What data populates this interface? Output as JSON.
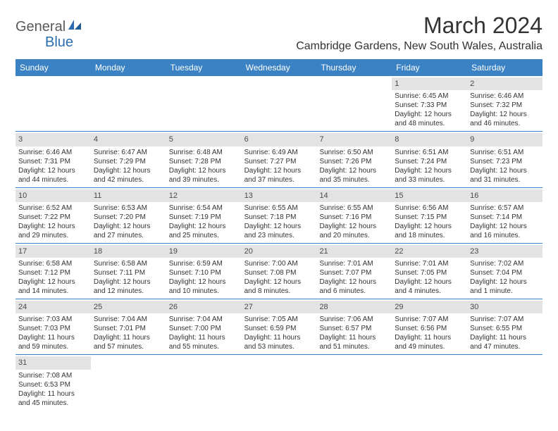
{
  "logo": {
    "part1": "General",
    "part2": "Blue"
  },
  "title": "March 2024",
  "location": "Cambridge Gardens, New South Wales, Australia",
  "colors": {
    "header_bg": "#3b82c4",
    "header_text": "#ffffff",
    "daynum_bg": "#e3e3e3",
    "row_border": "#3b82c4",
    "logo_accent": "#2a6bb0",
    "logo_gray": "#5a5a5a"
  },
  "weekdays": [
    "Sunday",
    "Monday",
    "Tuesday",
    "Wednesday",
    "Thursday",
    "Friday",
    "Saturday"
  ],
  "weeks": [
    [
      null,
      null,
      null,
      null,
      null,
      {
        "n": "1",
        "sr": "Sunrise: 6:45 AM",
        "ss": "Sunset: 7:33 PM",
        "d1": "Daylight: 12 hours",
        "d2": "and 48 minutes."
      },
      {
        "n": "2",
        "sr": "Sunrise: 6:46 AM",
        "ss": "Sunset: 7:32 PM",
        "d1": "Daylight: 12 hours",
        "d2": "and 46 minutes."
      }
    ],
    [
      {
        "n": "3",
        "sr": "Sunrise: 6:46 AM",
        "ss": "Sunset: 7:31 PM",
        "d1": "Daylight: 12 hours",
        "d2": "and 44 minutes."
      },
      {
        "n": "4",
        "sr": "Sunrise: 6:47 AM",
        "ss": "Sunset: 7:29 PM",
        "d1": "Daylight: 12 hours",
        "d2": "and 42 minutes."
      },
      {
        "n": "5",
        "sr": "Sunrise: 6:48 AM",
        "ss": "Sunset: 7:28 PM",
        "d1": "Daylight: 12 hours",
        "d2": "and 39 minutes."
      },
      {
        "n": "6",
        "sr": "Sunrise: 6:49 AM",
        "ss": "Sunset: 7:27 PM",
        "d1": "Daylight: 12 hours",
        "d2": "and 37 minutes."
      },
      {
        "n": "7",
        "sr": "Sunrise: 6:50 AM",
        "ss": "Sunset: 7:26 PM",
        "d1": "Daylight: 12 hours",
        "d2": "and 35 minutes."
      },
      {
        "n": "8",
        "sr": "Sunrise: 6:51 AM",
        "ss": "Sunset: 7:24 PM",
        "d1": "Daylight: 12 hours",
        "d2": "and 33 minutes."
      },
      {
        "n": "9",
        "sr": "Sunrise: 6:51 AM",
        "ss": "Sunset: 7:23 PM",
        "d1": "Daylight: 12 hours",
        "d2": "and 31 minutes."
      }
    ],
    [
      {
        "n": "10",
        "sr": "Sunrise: 6:52 AM",
        "ss": "Sunset: 7:22 PM",
        "d1": "Daylight: 12 hours",
        "d2": "and 29 minutes."
      },
      {
        "n": "11",
        "sr": "Sunrise: 6:53 AM",
        "ss": "Sunset: 7:20 PM",
        "d1": "Daylight: 12 hours",
        "d2": "and 27 minutes."
      },
      {
        "n": "12",
        "sr": "Sunrise: 6:54 AM",
        "ss": "Sunset: 7:19 PM",
        "d1": "Daylight: 12 hours",
        "d2": "and 25 minutes."
      },
      {
        "n": "13",
        "sr": "Sunrise: 6:55 AM",
        "ss": "Sunset: 7:18 PM",
        "d1": "Daylight: 12 hours",
        "d2": "and 23 minutes."
      },
      {
        "n": "14",
        "sr": "Sunrise: 6:55 AM",
        "ss": "Sunset: 7:16 PM",
        "d1": "Daylight: 12 hours",
        "d2": "and 20 minutes."
      },
      {
        "n": "15",
        "sr": "Sunrise: 6:56 AM",
        "ss": "Sunset: 7:15 PM",
        "d1": "Daylight: 12 hours",
        "d2": "and 18 minutes."
      },
      {
        "n": "16",
        "sr": "Sunrise: 6:57 AM",
        "ss": "Sunset: 7:14 PM",
        "d1": "Daylight: 12 hours",
        "d2": "and 16 minutes."
      }
    ],
    [
      {
        "n": "17",
        "sr": "Sunrise: 6:58 AM",
        "ss": "Sunset: 7:12 PM",
        "d1": "Daylight: 12 hours",
        "d2": "and 14 minutes."
      },
      {
        "n": "18",
        "sr": "Sunrise: 6:58 AM",
        "ss": "Sunset: 7:11 PM",
        "d1": "Daylight: 12 hours",
        "d2": "and 12 minutes."
      },
      {
        "n": "19",
        "sr": "Sunrise: 6:59 AM",
        "ss": "Sunset: 7:10 PM",
        "d1": "Daylight: 12 hours",
        "d2": "and 10 minutes."
      },
      {
        "n": "20",
        "sr": "Sunrise: 7:00 AM",
        "ss": "Sunset: 7:08 PM",
        "d1": "Daylight: 12 hours",
        "d2": "and 8 minutes."
      },
      {
        "n": "21",
        "sr": "Sunrise: 7:01 AM",
        "ss": "Sunset: 7:07 PM",
        "d1": "Daylight: 12 hours",
        "d2": "and 6 minutes."
      },
      {
        "n": "22",
        "sr": "Sunrise: 7:01 AM",
        "ss": "Sunset: 7:05 PM",
        "d1": "Daylight: 12 hours",
        "d2": "and 4 minutes."
      },
      {
        "n": "23",
        "sr": "Sunrise: 7:02 AM",
        "ss": "Sunset: 7:04 PM",
        "d1": "Daylight: 12 hours",
        "d2": "and 1 minute."
      }
    ],
    [
      {
        "n": "24",
        "sr": "Sunrise: 7:03 AM",
        "ss": "Sunset: 7:03 PM",
        "d1": "Daylight: 11 hours",
        "d2": "and 59 minutes."
      },
      {
        "n": "25",
        "sr": "Sunrise: 7:04 AM",
        "ss": "Sunset: 7:01 PM",
        "d1": "Daylight: 11 hours",
        "d2": "and 57 minutes."
      },
      {
        "n": "26",
        "sr": "Sunrise: 7:04 AM",
        "ss": "Sunset: 7:00 PM",
        "d1": "Daylight: 11 hours",
        "d2": "and 55 minutes."
      },
      {
        "n": "27",
        "sr": "Sunrise: 7:05 AM",
        "ss": "Sunset: 6:59 PM",
        "d1": "Daylight: 11 hours",
        "d2": "and 53 minutes."
      },
      {
        "n": "28",
        "sr": "Sunrise: 7:06 AM",
        "ss": "Sunset: 6:57 PM",
        "d1": "Daylight: 11 hours",
        "d2": "and 51 minutes."
      },
      {
        "n": "29",
        "sr": "Sunrise: 7:07 AM",
        "ss": "Sunset: 6:56 PM",
        "d1": "Daylight: 11 hours",
        "d2": "and 49 minutes."
      },
      {
        "n": "30",
        "sr": "Sunrise: 7:07 AM",
        "ss": "Sunset: 6:55 PM",
        "d1": "Daylight: 11 hours",
        "d2": "and 47 minutes."
      }
    ],
    [
      {
        "n": "31",
        "sr": "Sunrise: 7:08 AM",
        "ss": "Sunset: 6:53 PM",
        "d1": "Daylight: 11 hours",
        "d2": "and 45 minutes."
      },
      null,
      null,
      null,
      null,
      null,
      null
    ]
  ]
}
